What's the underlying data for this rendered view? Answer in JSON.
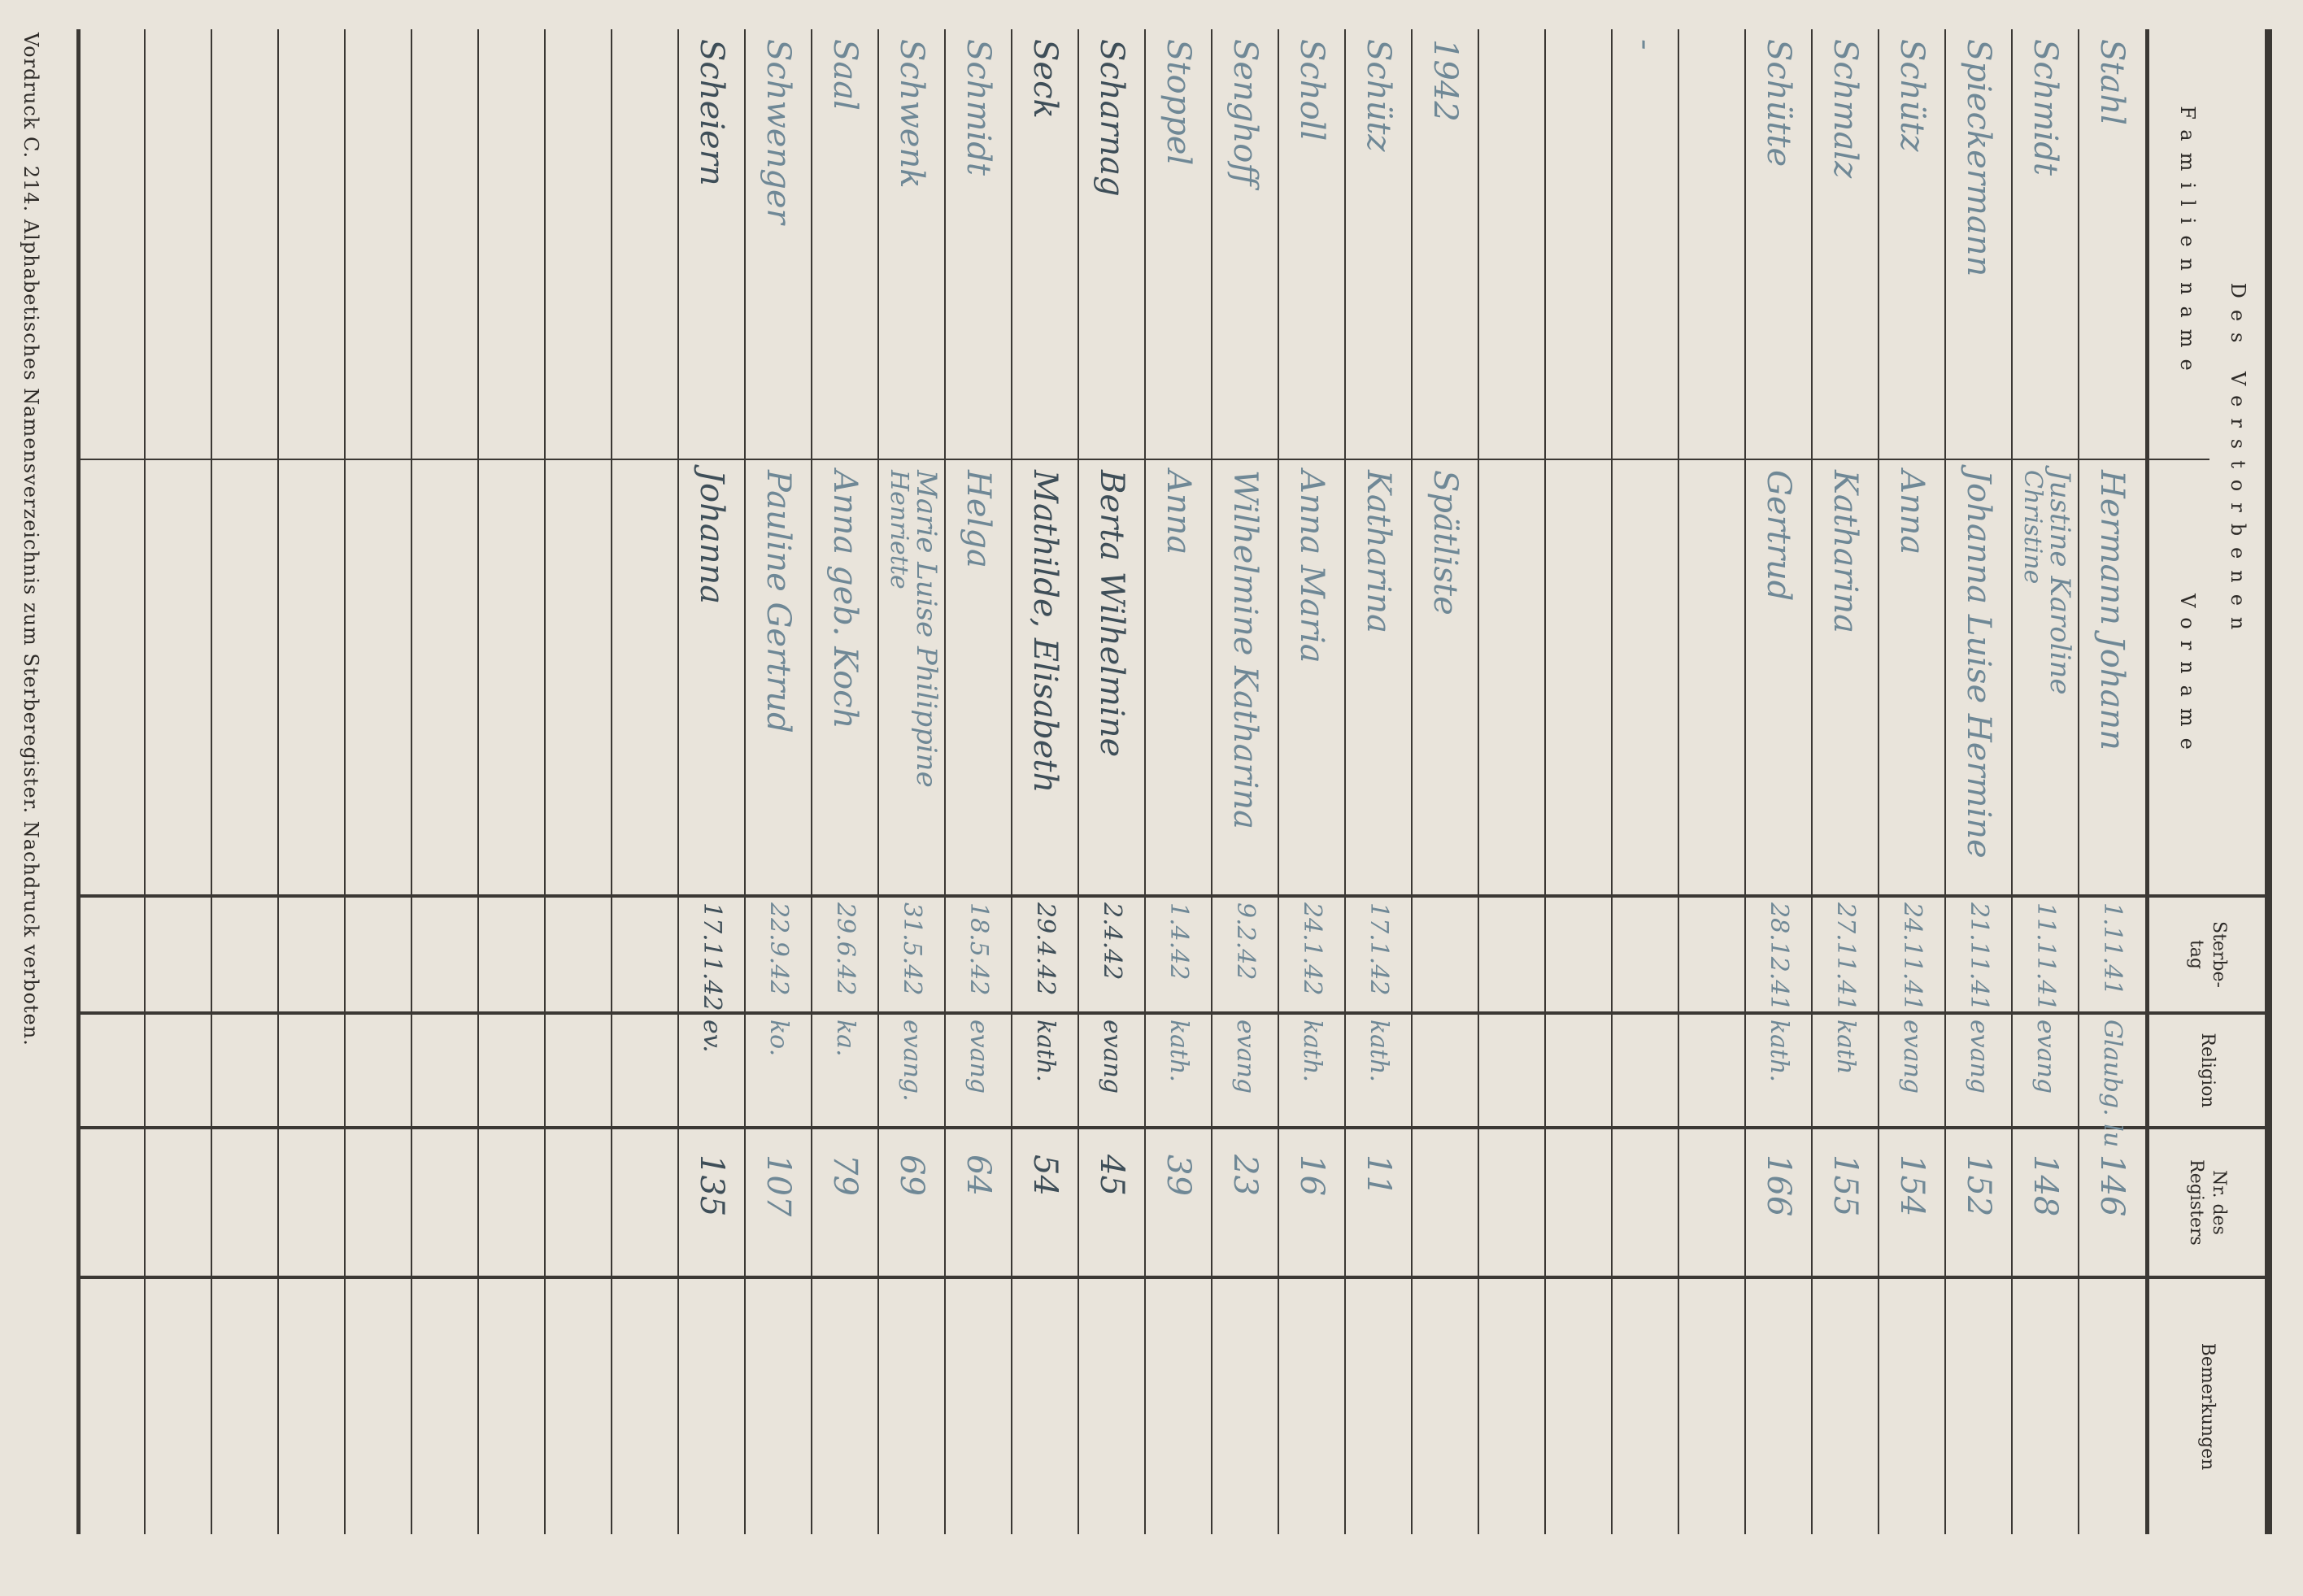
{
  "header": {
    "group_title": "Des Verstorbenen",
    "col_family": "Familienname",
    "col_given": "Vorname",
    "col_date_1": "Sterbe-",
    "col_date_2": "tag",
    "col_religion": "Religion",
    "col_register_1": "Nr. des",
    "col_register_2": "Registers",
    "col_remarks": "Bemerkungen"
  },
  "rows": [
    {
      "family": "Stahl",
      "given": "Hermann Johann",
      "date": "1.11.41",
      "religion": "Glaubg. lu",
      "register": "146"
    },
    {
      "family": "Schmidt",
      "given": "Justine Karoline",
      "given2": "Christine",
      "date": "11.11.41",
      "religion": "evang",
      "register": "148"
    },
    {
      "family": "Spieckermann",
      "given": "Johanna Luise Hermine",
      "date": "21.11.41",
      "religion": "evang",
      "register": "152"
    },
    {
      "family": "Schütz",
      "given": "Anna",
      "date": "24.11.41",
      "religion": "evang",
      "register": "154"
    },
    {
      "family": "Schmalz",
      "given": "Katharina",
      "date": "27.11.41",
      "religion": "kath",
      "register": "155"
    },
    {
      "family": "Schütte",
      "given": "Gertrud",
      "date": "28.12.41",
      "religion": "kath.",
      "register": "166"
    },
    {
      "family": "",
      "given": "",
      "date": "",
      "religion": "",
      "register": ""
    },
    {
      "family": "-",
      "given": "",
      "date": "",
      "religion": "",
      "register": ""
    },
    {
      "family": "",
      "given": "",
      "date": "",
      "religion": "",
      "register": ""
    },
    {
      "family": "",
      "given": "",
      "date": "",
      "religion": "",
      "register": ""
    },
    {
      "family": "1942",
      "given": "Spätliste",
      "date": "",
      "religion": "",
      "register": ""
    },
    {
      "family": "Schütz",
      "given": "Katharina",
      "date": "17.1.42",
      "religion": "kath.",
      "register": "11"
    },
    {
      "family": "Scholl",
      "given": "Anna Maria",
      "date": "24.1.42",
      "religion": "kath.",
      "register": "16"
    },
    {
      "family": "Senghoff",
      "given": "Wilhelmine Katharina",
      "date": "9.2.42",
      "religion": "evang",
      "register": "23"
    },
    {
      "family": "Stoppel",
      "given": "Anna",
      "date": "1.4.42",
      "religion": "kath.",
      "register": "39"
    },
    {
      "family": "Scharnag",
      "given": "Berta Wilhelmine",
      "date": "2.4.42",
      "religion": "evang",
      "register": "45"
    },
    {
      "family": "Seck",
      "given": "Mathilde, Elisabeth",
      "date": "29.4.42",
      "religion": "kath.",
      "register": "54"
    },
    {
      "family": "Schmidt",
      "given": "Helga",
      "date": "18.5.42",
      "religion": "evang",
      "register": "64"
    },
    {
      "family": "Schwenk",
      "given": "Marie Luise Philippine",
      "given2": "Henriette",
      "date": "31.5.42",
      "religion": "evang.",
      "register": "69"
    },
    {
      "family": "Saal",
      "given": "Anna geb. Koch",
      "date": "29.6.42",
      "religion": "ka.",
      "register": "79"
    },
    {
      "family": "Schwenger",
      "given": "Pauline Gertrud",
      "date": "22.9.42",
      "religion": "ko.",
      "register": "107"
    },
    {
      "family": "Scheiern",
      "given": "Johanna",
      "date": "17.11.42",
      "religion": "ev.",
      "register": "135"
    },
    {},
    {},
    {},
    {},
    {},
    {},
    {},
    {},
    {}
  ],
  "footer": "Vordruck C. 214. Alphabetisches Namensverzeichnis zum Sterberegister. Nachdruck verboten.",
  "colors": {
    "paper": "#e9e4db",
    "rule": "#3b3834",
    "ink": "#6f8896",
    "ink_dark": "#3e4e58"
  }
}
